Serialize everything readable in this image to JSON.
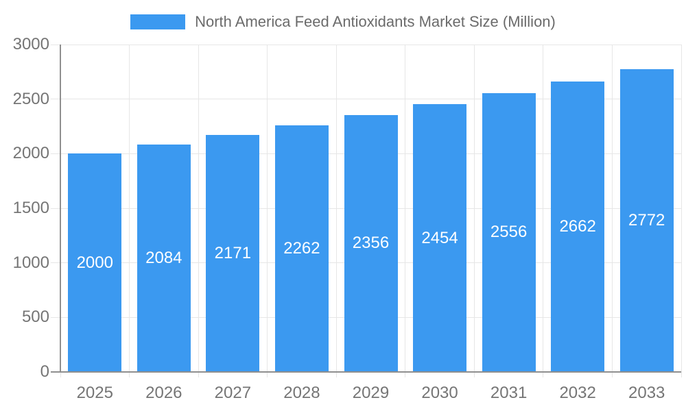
{
  "chart_data": {
    "type": "bar",
    "title": "North America Feed Antioxidants Market Size (Million)",
    "categories": [
      "2025",
      "2026",
      "2027",
      "2028",
      "2029",
      "2030",
      "2031",
      "2032",
      "2033"
    ],
    "values": [
      2000,
      2084,
      2171,
      2262,
      2356,
      2454,
      2556,
      2662,
      2772
    ],
    "xlabel": "",
    "ylabel": "",
    "ylim": [
      0,
      3000
    ],
    "yticks": [
      0,
      500,
      1000,
      1500,
      2000,
      2500,
      3000
    ],
    "grid": true,
    "legend_position": "top",
    "value_labels": "inside-center",
    "colors": {
      "bar": "#3B99F0",
      "gridline": "#E6E6E6",
      "axis_line": "#8F8F8F",
      "tick_label": "#757575",
      "title": "#6B6B6B",
      "value_label": "#FFFFFF",
      "background": "#FFFFFF"
    }
  }
}
